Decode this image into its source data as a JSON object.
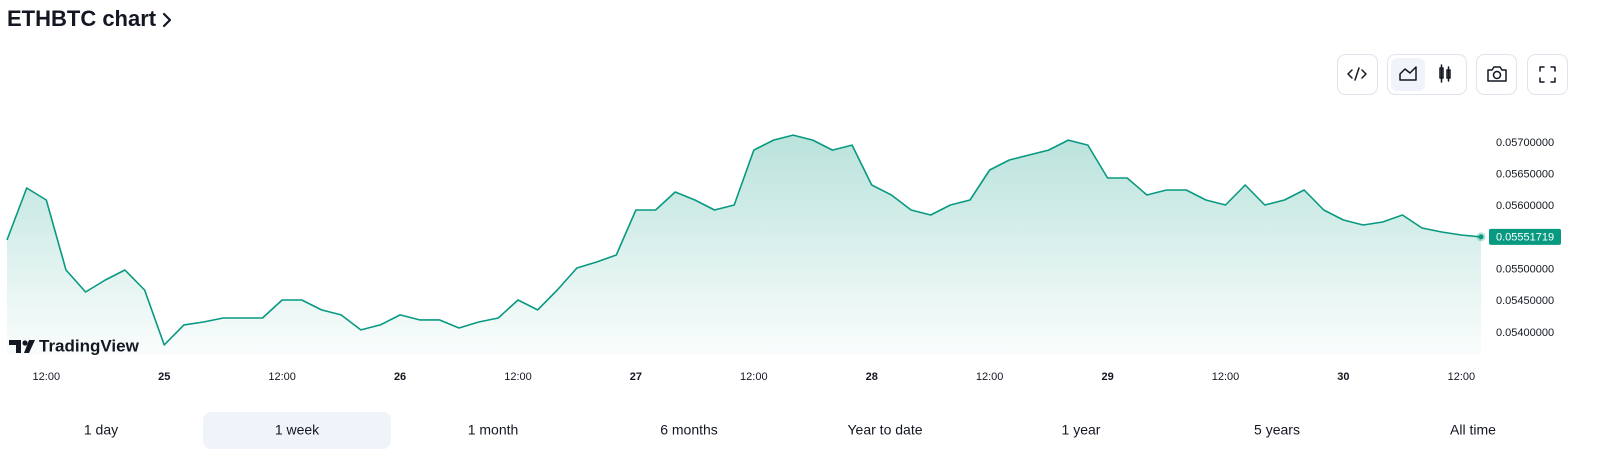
{
  "header": {
    "title": "ETHBTC chart"
  },
  "chart_data": {
    "type": "area",
    "color": "#089981",
    "watermark": "TradingView",
    "x": [
      8,
      10,
      12,
      14,
      16,
      18,
      20,
      22,
      24,
      26,
      28,
      30,
      32,
      34,
      36,
      38,
      40,
      42,
      44,
      46,
      48,
      50,
      52,
      54,
      56,
      58,
      60,
      62,
      64,
      66,
      68,
      70,
      72,
      74,
      76,
      78,
      80,
      82,
      84,
      86,
      88,
      90,
      92,
      94,
      96,
      98,
      100,
      102,
      104,
      106,
      108,
      110,
      112,
      114,
      116,
      118,
      120,
      122,
      124,
      126,
      128,
      130,
      132,
      134,
      136,
      138,
      140,
      142,
      144,
      146,
      148,
      150,
      152,
      154,
      156,
      158
    ],
    "values": [
      0.055468,
      0.056289,
      0.0561,
      0.054994,
      0.054646,
      0.054836,
      0.054994,
      0.054678,
      0.053809,
      0.054125,
      0.054172,
      0.054235,
      0.054235,
      0.054235,
      0.05452,
      0.05452,
      0.054362,
      0.054283,
      0.054046,
      0.054125,
      0.054283,
      0.054204,
      0.054204,
      0.054077,
      0.054172,
      0.054235,
      0.05452,
      0.054362,
      0.054678,
      0.055025,
      0.05512,
      0.055231,
      0.055942,
      0.055942,
      0.056226,
      0.0561,
      0.055942,
      0.056021,
      0.056889,
      0.057047,
      0.057126,
      0.057047,
      0.056889,
      0.056968,
      0.056336,
      0.056179,
      0.055942,
      0.055863,
      0.056021,
      0.0561,
      0.056573,
      0.056731,
      0.05681,
      0.056889,
      0.057047,
      0.056968,
      0.056447,
      0.056447,
      0.056179,
      0.056258,
      0.056258,
      0.0561,
      0.056021,
      0.056336,
      0.056021,
      0.0561,
      0.056258,
      0.055942,
      0.055784,
      0.055705,
      0.055752,
      0.055863,
      0.055657,
      0.055594,
      0.055547,
      0.05551719
    ],
    "xlim": [
      8,
      158
    ],
    "xticks": [
      {
        "value": 12,
        "label": "12:00"
      },
      {
        "value": 24,
        "label": "25"
      },
      {
        "value": 36,
        "label": "12:00"
      },
      {
        "value": 48,
        "label": "26"
      },
      {
        "value": 60,
        "label": "12:00"
      },
      {
        "value": 72,
        "label": "27"
      },
      {
        "value": 84,
        "label": "12:00"
      },
      {
        "value": 96,
        "label": "28"
      },
      {
        "value": 108,
        "label": "12:00"
      },
      {
        "value": 120,
        "label": "29"
      },
      {
        "value": 132,
        "label": "12:00"
      },
      {
        "value": 144,
        "label": "30"
      },
      {
        "value": 156,
        "label": "12:00"
      }
    ],
    "ylim": [
      0.05365,
      0.05768
    ],
    "yticks": [
      {
        "value": 0.054,
        "label": "0.05400000"
      },
      {
        "value": 0.0545,
        "label": "0.05450000"
      },
      {
        "value": 0.055,
        "label": "0.05500000"
      },
      {
        "value": 0.0555,
        "label": "0.05550000"
      },
      {
        "value": 0.056,
        "label": "0.05600000"
      },
      {
        "value": 0.0565,
        "label": "0.05650000"
      },
      {
        "value": 0.057,
        "label": "0.05700000"
      }
    ]
  },
  "ranges": {
    "options": [
      "1 day",
      "1 week",
      "1 month",
      "6 months",
      "Year to date",
      "1 year",
      "5 years",
      "All time"
    ],
    "selected": 1
  }
}
